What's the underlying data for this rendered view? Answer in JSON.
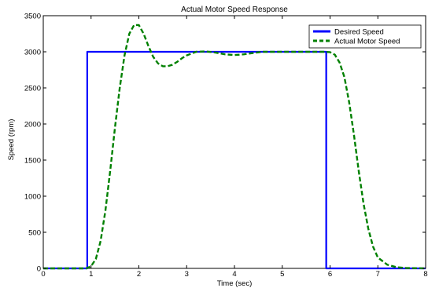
{
  "chart_data": {
    "type": "line",
    "title": "Actual Motor Speed Response",
    "xlabel": "Time (sec)",
    "ylabel": "Speed (rpm)",
    "xlim": [
      0,
      8
    ],
    "ylim": [
      0,
      3500
    ],
    "xticks": [
      0,
      1,
      2,
      3,
      4,
      5,
      6,
      7,
      8
    ],
    "yticks": [
      0,
      500,
      1000,
      1500,
      2000,
      2500,
      3000,
      3500
    ],
    "grid": false,
    "legend_position": "top-right",
    "series": [
      {
        "name": "Desired Speed",
        "color": "#0000ff",
        "style": "solid",
        "x": [
          0,
          0.92,
          0.92,
          5.92,
          5.92,
          8
        ],
        "y": [
          0,
          0,
          3000,
          3000,
          0,
          0
        ]
      },
      {
        "name": "Actual Motor Speed",
        "color": "#008000",
        "style": "dashed",
        "x": [
          0,
          0.9,
          1.0,
          1.1,
          1.2,
          1.3,
          1.4,
          1.5,
          1.6,
          1.7,
          1.8,
          1.9,
          2.0,
          2.1,
          2.2,
          2.3,
          2.4,
          2.5,
          2.6,
          2.7,
          2.8,
          2.9,
          3.0,
          3.2,
          3.4,
          3.6,
          3.8,
          4.0,
          4.2,
          4.4,
          4.6,
          5.0,
          5.5,
          5.9,
          6.0,
          6.1,
          6.2,
          6.3,
          6.4,
          6.5,
          6.6,
          6.7,
          6.8,
          6.9,
          7.0,
          7.2,
          7.4,
          7.6,
          8.0
        ],
        "y": [
          0,
          0,
          30,
          130,
          380,
          800,
          1350,
          1950,
          2500,
          2950,
          3250,
          3370,
          3370,
          3250,
          3080,
          2930,
          2840,
          2800,
          2800,
          2820,
          2860,
          2910,
          2950,
          3000,
          3005,
          2990,
          2965,
          2955,
          2965,
          2985,
          3000,
          3000,
          3000,
          3000,
          2995,
          2960,
          2850,
          2650,
          2300,
          1850,
          1350,
          900,
          550,
          300,
          150,
          50,
          15,
          5,
          0
        ]
      }
    ]
  }
}
